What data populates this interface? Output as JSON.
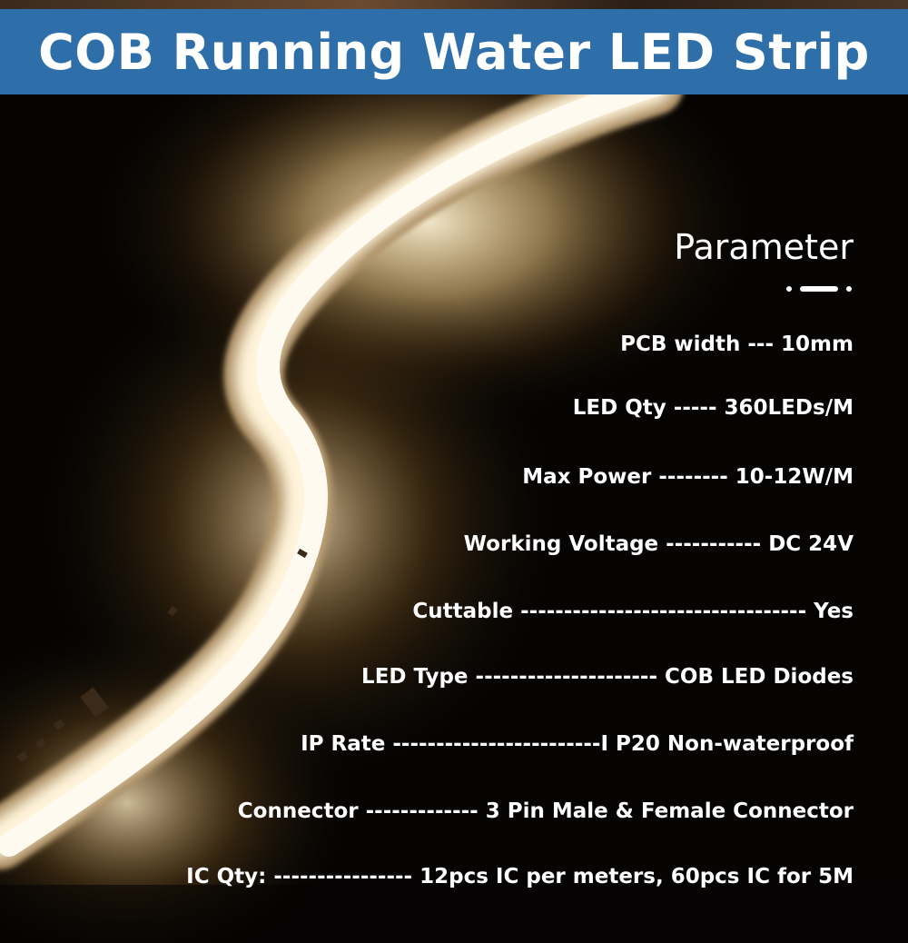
{
  "banner": {
    "title": "COB Running Water LED Strip"
  },
  "parameter": {
    "heading": "Parameter"
  },
  "specs": [
    {
      "label": "PCB width",
      "separator": "---",
      "value": "10mm"
    },
    {
      "label": "LED Qty",
      "separator": "-----",
      "value": "360LEDs/M"
    },
    {
      "label": "Max Power",
      "separator": "--------",
      "value": "10-12W/M"
    },
    {
      "label": "Working Voltage",
      "separator": "-----------",
      "value": "DC 24V"
    },
    {
      "label": "Cuttable",
      "separator": "---------------------------------",
      "value": "Yes"
    },
    {
      "label": "LED Type",
      "separator": "---------------------",
      "value": "COB LED Diodes"
    },
    {
      "label": "IP Rate",
      "separator": "------------------------",
      "value": "I P20 Non-waterproof",
      "joined": true
    },
    {
      "label": "Connector",
      "separator": "-------------",
      "value": "3 Pin Male & Female Connector"
    },
    {
      "label": "IC Qty:",
      "separator": "----------------",
      "value": "12pcs IC per meters, 60pcs IC for 5M"
    }
  ],
  "colors": {
    "banner": "#2f6fa9",
    "text": "#ffffff",
    "background": "#050403",
    "glow": "#ffe7b8"
  }
}
